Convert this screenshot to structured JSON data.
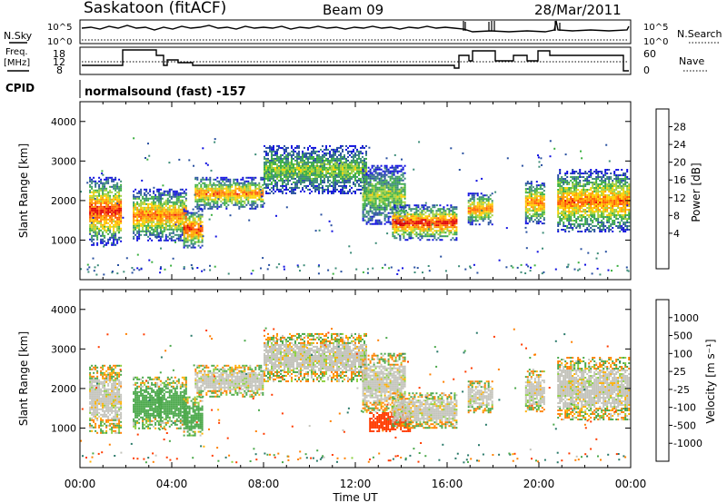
{
  "header": {
    "station": "Saskatoon (fitACF)",
    "beam": "Beam 09",
    "date": "28/Mar/2011",
    "cpid_label": "CPID",
    "program": "normalsound (fast) -157"
  },
  "left_labels": {
    "nsky": "N.Sky",
    "freq_line1": "Freq.",
    "freq_line2": "[MHz]"
  },
  "right_labels": {
    "nsearch": "N.Search",
    "nave": "Nave"
  },
  "top_panel_ticks": {
    "left_hi": "10^5",
    "left_lo": "10^0",
    "right_hi": "10^5",
    "right_lo": "10^0"
  },
  "freq_panel_ticks": {
    "left": [
      "18",
      "12",
      "8"
    ],
    "right": [
      "60",
      "0"
    ]
  },
  "colorbars": {
    "power": {
      "label": "Power [dB]",
      "ticks": [
        "28",
        "24",
        "20",
        "16",
        "12",
        "8",
        "4"
      ],
      "colors": [
        "#e00000",
        "#ff5a00",
        "#ff9c00",
        "#ffd000",
        "#a0d040",
        "#3cb040",
        "#3c8c78",
        "#2850a0",
        "#1010e0"
      ]
    },
    "velocity": {
      "label": "Velocity [m s⁻¹]",
      "ticks": [
        "1000",
        "500",
        "100",
        "25",
        "-25",
        "-100",
        "-500",
        "-1000"
      ],
      "colors": [
        "#1e3ca0",
        "#2a7a6a",
        "#4aa84a",
        "#8cd040",
        "#c4c4bc",
        "#ffb000",
        "#ff8000",
        "#ff3c00",
        "#e00000"
      ]
    }
  },
  "chart_data": [
    {
      "type": "heatmap",
      "name": "power",
      "ylabel": "Slant Range [km]",
      "xlim": [
        "00:00",
        "24:00"
      ],
      "ylim": [
        0,
        4500
      ],
      "ytick_labels": [
        "1000",
        "2000",
        "3000",
        "4000"
      ],
      "xtick_labels": [
        "00:00",
        "04:00",
        "08:00",
        "12:00",
        "16:00",
        "20:00",
        "00:00"
      ],
      "echo_bands": [
        {
          "t_start_h": 0.4,
          "t_end_h": 1.8,
          "range_lo_km": 900,
          "range_hi_km": 2600,
          "peak_db": 28
        },
        {
          "t_start_h": 2.3,
          "t_end_h": 3.5,
          "range_lo_km": 1000,
          "range_hi_km": 2300,
          "peak_db": 24
        },
        {
          "t_start_h": 3.4,
          "t_end_h": 4.6,
          "range_lo_km": 1000,
          "range_hi_km": 2300,
          "peak_db": 24
        },
        {
          "t_start_h": 4.5,
          "t_end_h": 5.3,
          "range_lo_km": 800,
          "range_hi_km": 1800,
          "peak_db": 28
        },
        {
          "t_start_h": 5.0,
          "t_end_h": 8.0,
          "range_lo_km": 1800,
          "range_hi_km": 2600,
          "peak_db": 24
        },
        {
          "t_start_h": 8.0,
          "t_end_h": 12.5,
          "range_lo_km": 2200,
          "range_hi_km": 3400,
          "peak_db": 16
        },
        {
          "t_start_h": 12.3,
          "t_end_h": 14.2,
          "range_lo_km": 1400,
          "range_hi_km": 2900,
          "peak_db": 16
        },
        {
          "t_start_h": 13.6,
          "t_end_h": 16.4,
          "range_lo_km": 1000,
          "range_hi_km": 1900,
          "peak_db": 28
        },
        {
          "t_start_h": 16.9,
          "t_end_h": 18.0,
          "range_lo_km": 1400,
          "range_hi_km": 2200,
          "peak_db": 24
        },
        {
          "t_start_h": 19.4,
          "t_end_h": 20.2,
          "range_lo_km": 1400,
          "range_hi_km": 2500,
          "peak_db": 24
        },
        {
          "t_start_h": 20.8,
          "t_end_h": 23.9,
          "range_lo_km": 1200,
          "range_hi_km": 2800,
          "peak_db": 24
        }
      ]
    },
    {
      "type": "heatmap",
      "name": "velocity",
      "ylabel": "Slant Range [km]",
      "xlabel": "Time UT",
      "xlim": [
        "00:00",
        "24:00"
      ],
      "ylim": [
        0,
        4500
      ],
      "ytick_labels": [
        "1000",
        "2000",
        "3000",
        "4000"
      ],
      "xtick_labels": [
        "00:00",
        "04:00",
        "08:00",
        "12:00",
        "16:00",
        "20:00",
        "00:00"
      ],
      "echo_bands": [
        {
          "t_start_h": 0.4,
          "t_end_h": 1.8,
          "range_lo_km": 900,
          "range_hi_km": 2600,
          "typical_velocity_ms": 0
        },
        {
          "t_start_h": 2.3,
          "t_end_h": 3.5,
          "range_lo_km": 1000,
          "range_hi_km": 2300,
          "typical_velocity_ms": 100
        },
        {
          "t_start_h": 3.4,
          "t_end_h": 4.6,
          "range_lo_km": 1000,
          "range_hi_km": 2300,
          "typical_velocity_ms": 100
        },
        {
          "t_start_h": 4.5,
          "t_end_h": 5.3,
          "range_lo_km": 800,
          "range_hi_km": 1800,
          "typical_velocity_ms": 100
        },
        {
          "t_start_h": 5.0,
          "t_end_h": 8.0,
          "range_lo_km": 1800,
          "range_hi_km": 2600,
          "typical_velocity_ms": 0
        },
        {
          "t_start_h": 8.0,
          "t_end_h": 12.5,
          "range_lo_km": 2200,
          "range_hi_km": 3400,
          "typical_velocity_ms": 0
        },
        {
          "t_start_h": 12.3,
          "t_end_h": 14.2,
          "range_lo_km": 1400,
          "range_hi_km": 2900,
          "typical_velocity_ms": 0
        },
        {
          "t_start_h": 12.6,
          "t_end_h": 14.4,
          "range_lo_km": 900,
          "range_hi_km": 1400,
          "typical_velocity_ms": -500
        },
        {
          "t_start_h": 13.6,
          "t_end_h": 16.4,
          "range_lo_km": 1000,
          "range_hi_km": 1900,
          "typical_velocity_ms": 0
        },
        {
          "t_start_h": 16.9,
          "t_end_h": 18.0,
          "range_lo_km": 1400,
          "range_hi_km": 2200,
          "typical_velocity_ms": 0
        },
        {
          "t_start_h": 19.4,
          "t_end_h": 20.2,
          "range_lo_km": 1400,
          "range_hi_km": 2500,
          "typical_velocity_ms": 0
        },
        {
          "t_start_h": 20.8,
          "t_end_h": 23.9,
          "range_lo_km": 1200,
          "range_hi_km": 2800,
          "typical_velocity_ms": 0
        }
      ]
    }
  ]
}
